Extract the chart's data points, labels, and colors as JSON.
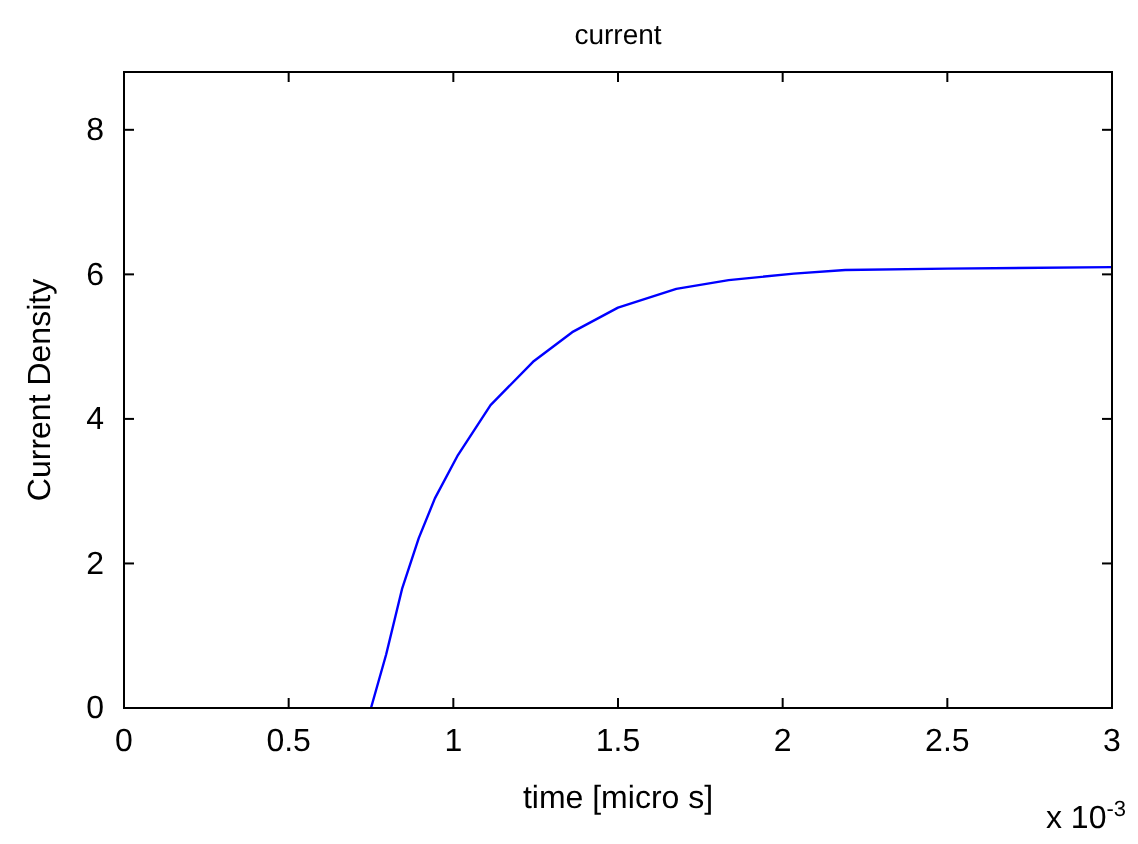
{
  "chart_data": {
    "type": "line",
    "title": "current",
    "xlabel": "time [micro s]",
    "ylabel": "Current Density",
    "x": [
      0.75,
      0.796,
      0.845,
      0.895,
      0.944,
      1.014,
      1.113,
      1.242,
      1.361,
      1.5,
      1.677,
      1.836,
      2.034,
      2.19,
      2.5,
      3
    ],
    "series": [
      {
        "color": "#0000ff",
        "values": [
          0,
          0.74,
          1.66,
          2.35,
          2.9,
          3.5,
          4.19,
          4.79,
          5.2,
          5.54,
          5.8,
          5.92,
          6.01,
          6.06,
          6.08,
          6.1
        ]
      }
    ],
    "xlim": [
      0,
      3
    ],
    "xticks": [
      0,
      0.5,
      1,
      1.5,
      2,
      2.5,
      3
    ],
    "ylim": [
      0,
      8.8
    ],
    "yticks": [
      0,
      2,
      4,
      6,
      8
    ],
    "annotations": [
      "x 10$^{-3}$"
    ],
    "grid": false,
    "marker": "none",
    "line_style": "solid"
  }
}
